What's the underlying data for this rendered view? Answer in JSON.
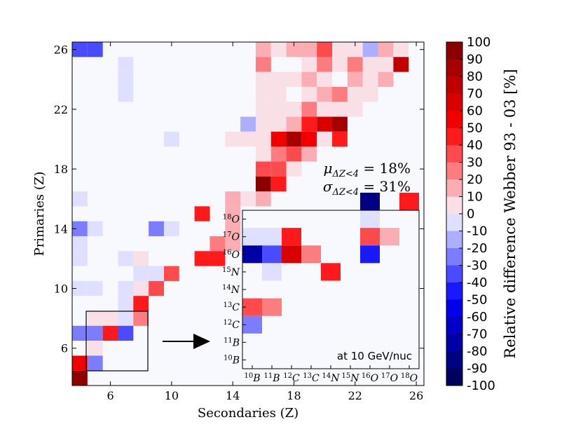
{
  "chart_data": {
    "type": "heatmap",
    "xlabel": "Secondaries (Z)",
    "ylabel": "Primaries (Z)",
    "x_ticks": [
      "6",
      "10",
      "14",
      "18",
      "22",
      "26"
    ],
    "y_ticks": [
      "6",
      "10",
      "14",
      "18",
      "22",
      "26"
    ],
    "xlim": [
      3.5,
      26.5
    ],
    "ylim": [
      3.5,
      26.5
    ],
    "colorbar": {
      "label": "Relative difference Webber 93 - 03 [%]",
      "ticks": [
        "100",
        "90",
        "80",
        "70",
        "60",
        "50",
        "40",
        "30",
        "20",
        "10",
        "0",
        "-10",
        "-20",
        "-30",
        "-40",
        "-50",
        "-60",
        "-70",
        "-80",
        "-90",
        "-100"
      ],
      "range": [
        -100,
        100
      ]
    },
    "stats": {
      "mu_label": "μ",
      "mu_sub": "ΔZ<4",
      "mu_value": " = 18%",
      "sigma_label": "σ",
      "sigma_sub": "ΔZ<4",
      "sigma_value": " = 31%"
    },
    "cells": [
      [
        4,
        26,
        -35
      ],
      [
        5,
        26,
        -35
      ],
      [
        7,
        25,
        -10
      ],
      [
        7,
        24,
        -10
      ],
      [
        7,
        23,
        -10
      ],
      [
        16,
        26,
        20
      ],
      [
        17,
        26,
        5
      ],
      [
        18,
        26,
        20
      ],
      [
        19,
        26,
        20
      ],
      [
        20,
        26,
        35
      ],
      [
        21,
        26,
        10
      ],
      [
        22,
        26,
        10
      ],
      [
        23,
        26,
        -15
      ],
      [
        24,
        26,
        20
      ],
      [
        25,
        26,
        10
      ],
      [
        16,
        25,
        25
      ],
      [
        19,
        25,
        10
      ],
      [
        20,
        25,
        25
      ],
      [
        21,
        25,
        10
      ],
      [
        22,
        25,
        25
      ],
      [
        23,
        25,
        10
      ],
      [
        24,
        25,
        10
      ],
      [
        25,
        25,
        80
      ],
      [
        16,
        24,
        10
      ],
      [
        17,
        24,
        10
      ],
      [
        18,
        24,
        10
      ],
      [
        19,
        24,
        20
      ],
      [
        20,
        24,
        10
      ],
      [
        22,
        24,
        20
      ],
      [
        23,
        24,
        5
      ],
      [
        24,
        24,
        20
      ],
      [
        16,
        23,
        10
      ],
      [
        17,
        23,
        10
      ],
      [
        19,
        23,
        10
      ],
      [
        20,
        23,
        20
      ],
      [
        21,
        23,
        30
      ],
      [
        22,
        23,
        10
      ],
      [
        23,
        23,
        10
      ],
      [
        16,
        22,
        10
      ],
      [
        17,
        22,
        10
      ],
      [
        18,
        22,
        10
      ],
      [
        19,
        22,
        30
      ],
      [
        20,
        22,
        10
      ],
      [
        21,
        22,
        10
      ],
      [
        22,
        22,
        10
      ],
      [
        16,
        21,
        10
      ],
      [
        17,
        21,
        10
      ],
      [
        18,
        21,
        20
      ],
      [
        19,
        21,
        50
      ],
      [
        20,
        21,
        70
      ],
      [
        21,
        21,
        90
      ],
      [
        15,
        21,
        -15
      ],
      [
        14,
        20,
        10
      ],
      [
        15,
        20,
        10
      ],
      [
        16,
        20,
        10
      ],
      [
        17,
        20,
        60
      ],
      [
        18,
        20,
        90
      ],
      [
        19,
        20,
        60
      ],
      [
        20,
        20,
        10
      ],
      [
        21,
        20,
        50
      ],
      [
        10,
        20,
        -10
      ],
      [
        16,
        19,
        10
      ],
      [
        17,
        19,
        30
      ],
      [
        18,
        19,
        40
      ],
      [
        19,
        19,
        20
      ],
      [
        16,
        18,
        40
      ],
      [
        17,
        18,
        40
      ],
      [
        18,
        18,
        10
      ],
      [
        16,
        17,
        95
      ],
      [
        17,
        17,
        50
      ],
      [
        14,
        16,
        20
      ],
      [
        16,
        16,
        20
      ],
      [
        15,
        16,
        5
      ],
      [
        4,
        16,
        -10
      ],
      [
        12,
        15,
        50
      ],
      [
        14,
        15,
        20
      ],
      [
        4,
        14,
        -25
      ],
      [
        5,
        14,
        -10
      ],
      [
        9,
        14,
        -25
      ],
      [
        10,
        14,
        -10
      ],
      [
        14,
        14,
        20
      ],
      [
        13,
        13,
        25
      ],
      [
        14,
        13,
        20
      ],
      [
        4,
        13,
        -10
      ],
      [
        4,
        12,
        -10
      ],
      [
        7,
        12,
        -10
      ],
      [
        8,
        12,
        10
      ],
      [
        12,
        12,
        50
      ],
      [
        13,
        12,
        50
      ],
      [
        8,
        11,
        -10
      ],
      [
        9,
        11,
        -10
      ],
      [
        10,
        11,
        35
      ],
      [
        4,
        10,
        -10
      ],
      [
        5,
        10,
        -10
      ],
      [
        7,
        10,
        -10
      ],
      [
        8,
        10,
        10
      ],
      [
        9,
        10,
        40
      ],
      [
        7,
        9,
        -10
      ],
      [
        8,
        9,
        45
      ],
      [
        5,
        8,
        10
      ],
      [
        6,
        8,
        5
      ],
      [
        7,
        8,
        -10
      ],
      [
        8,
        8,
        25
      ],
      [
        4,
        7,
        -25
      ],
      [
        5,
        7,
        -25
      ],
      [
        6,
        7,
        45
      ],
      [
        7,
        7,
        -40
      ],
      [
        5,
        6,
        10
      ],
      [
        4,
        5,
        60
      ],
      [
        5,
        5,
        -30
      ],
      [
        4,
        4,
        95
      ]
    ],
    "inset": {
      "note": "at 10 GeV/nuc",
      "labels": [
        {
          "sup": "10",
          "el": "B"
        },
        {
          "sup": "11",
          "el": "B"
        },
        {
          "sup": "12",
          "el": "C"
        },
        {
          "sup": "13",
          "el": "C"
        },
        {
          "sup": "14",
          "el": "N"
        },
        {
          "sup": "15",
          "el": "N"
        },
        {
          "sup": "16",
          "el": "O"
        },
        {
          "sup": "17",
          "el": "O"
        },
        {
          "sup": "18",
          "el": "O"
        }
      ],
      "cells": [
        [
          6,
          9,
          -85
        ],
        [
          8,
          9,
          45
        ],
        [
          6,
          8,
          -10
        ],
        [
          0,
          7,
          -10
        ],
        [
          1,
          7,
          -10
        ],
        [
          2,
          7,
          50
        ],
        [
          6,
          7,
          35
        ],
        [
          7,
          7,
          20
        ],
        [
          0,
          6,
          -80
        ],
        [
          1,
          6,
          -35
        ],
        [
          2,
          6,
          65
        ],
        [
          3,
          6,
          25
        ],
        [
          6,
          6,
          -45
        ],
        [
          1,
          5,
          -10
        ],
        [
          4,
          5,
          50
        ],
        [
          0,
          3,
          35
        ],
        [
          1,
          3,
          25
        ],
        [
          0,
          2,
          -30
        ]
      ]
    }
  }
}
